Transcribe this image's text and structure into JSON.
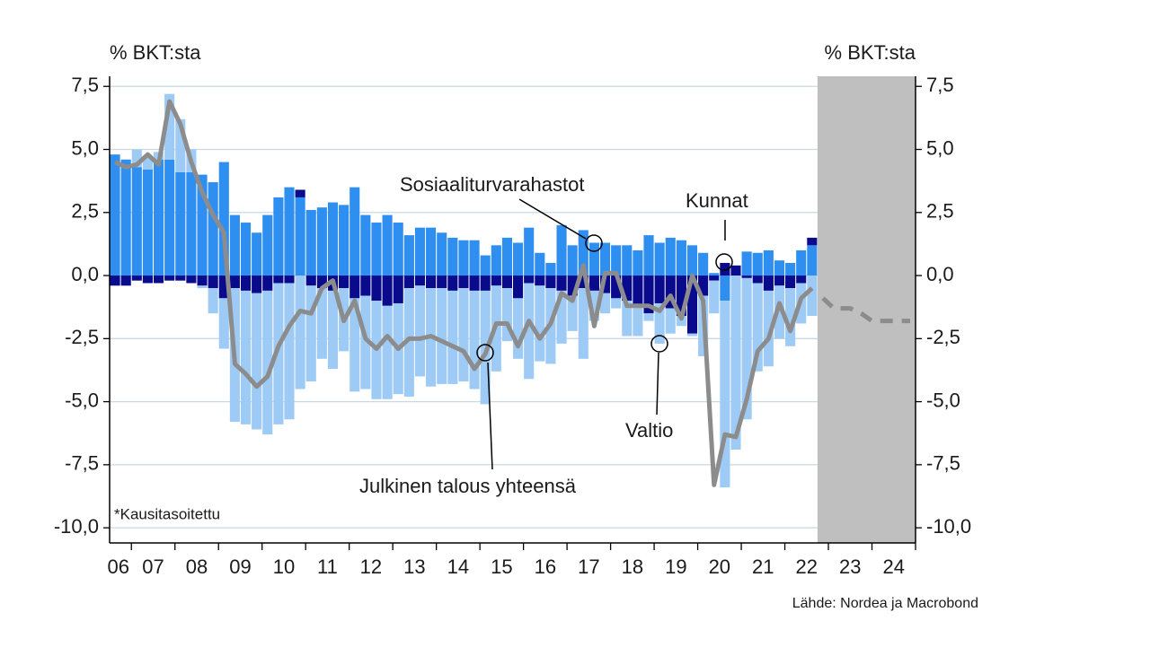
{
  "chart_data": {
    "type": "stacked-bar-line",
    "y_label": "% BKT:sta",
    "y2_label": "% BKT:sta",
    "annotations": {
      "social": "Sosiaaliturvarahastot",
      "municipal": "Kunnat",
      "state": "Valtio",
      "total": "Julkinen talous yhteensä"
    },
    "note": "*Kausitasoitettu",
    "source": "Lähde: Nordea ja Macrobond",
    "xlim": [
      2006.5,
      2025
    ],
    "ylim": [
      -10.6,
      7.9
    ],
    "yticks": [
      {
        "value": 7.5,
        "label": "7,5"
      },
      {
        "value": 5,
        "label": "5,0"
      },
      {
        "value": 2.5,
        "label": "2,5"
      },
      {
        "value": 0,
        "label": "0,0"
      },
      {
        "value": -2.5,
        "label": "-2,5"
      },
      {
        "value": -5,
        "label": "-5,0"
      },
      {
        "value": -7.5,
        "label": "-7,5"
      },
      {
        "value": -10,
        "label": "-10,0"
      }
    ],
    "xticks": [
      {
        "value": 2006.7,
        "label": "06"
      },
      {
        "value": 2007.5,
        "label": "07"
      },
      {
        "value": 2008.5,
        "label": "08"
      },
      {
        "value": 2009.5,
        "label": "09"
      },
      {
        "value": 2010.5,
        "label": "10"
      },
      {
        "value": 2011.5,
        "label": "11"
      },
      {
        "value": 2012.5,
        "label": "12"
      },
      {
        "value": 2013.5,
        "label": "13"
      },
      {
        "value": 2014.5,
        "label": "14"
      },
      {
        "value": 2015.5,
        "label": "15"
      },
      {
        "value": 2016.5,
        "label": "16"
      },
      {
        "value": 2017.5,
        "label": "17"
      },
      {
        "value": 2018.5,
        "label": "18"
      },
      {
        "value": 2019.5,
        "label": "19"
      },
      {
        "value": 2020.5,
        "label": "20"
      },
      {
        "value": 2021.5,
        "label": "21"
      },
      {
        "value": 2022.5,
        "label": "22"
      },
      {
        "value": 2023.5,
        "label": "23"
      },
      {
        "value": 2024.5,
        "label": "24"
      }
    ],
    "grid": true,
    "shaded_xlim": [
      2022.75,
      2025
    ],
    "shade_color": "#bfbfbf",
    "x": [
      2006.625,
      2006.875,
      2007.125,
      2007.375,
      2007.625,
      2007.875,
      2008.125,
      2008.375,
      2008.625,
      2008.875,
      2009.125,
      2009.375,
      2009.625,
      2009.875,
      2010.125,
      2010.375,
      2010.625,
      2010.875,
      2011.125,
      2011.375,
      2011.625,
      2011.875,
      2012.125,
      2012.375,
      2012.625,
      2012.875,
      2013.125,
      2013.375,
      2013.625,
      2013.875,
      2014.125,
      2014.375,
      2014.625,
      2014.875,
      2015.125,
      2015.375,
      2015.625,
      2015.875,
      2016.125,
      2016.375,
      2016.625,
      2016.875,
      2017.125,
      2017.375,
      2017.625,
      2017.875,
      2018.125,
      2018.375,
      2018.625,
      2018.875,
      2019.125,
      2019.375,
      2019.625,
      2019.875,
      2020.125,
      2020.375,
      2020.625,
      2020.875,
      2021.125,
      2021.375,
      2021.625,
      2021.875,
      2022.125,
      2022.375,
      2022.625
    ],
    "series": [
      {
        "name": "Sosiaaliturvarahastot",
        "color": "#2f8ff0",
        "values": [
          4.8,
          4.6,
          4.3,
          4.2,
          4.6,
          4.6,
          4.1,
          4.1,
          4.0,
          3.7,
          4.5,
          2.4,
          2.1,
          1.7,
          2.4,
          3.1,
          3.5,
          3.1,
          2.6,
          2.7,
          2.9,
          2.8,
          3.5,
          2.4,
          2.1,
          2.4,
          2.1,
          1.6,
          1.9,
          1.9,
          1.7,
          1.5,
          1.4,
          1.4,
          0.8,
          1.2,
          1.5,
          1.3,
          1.9,
          0.9,
          0.5,
          2.0,
          1.2,
          1.8,
          1.3,
          1.3,
          1.2,
          1.2,
          1.0,
          1.6,
          1.3,
          1.5,
          1.4,
          1.2,
          0.9,
          0.1,
          -1.0,
          0.0,
          0.95,
          0.9,
          1.0,
          0.6,
          0.5,
          1.0,
          1.2
        ]
      },
      {
        "name": "Kunnat",
        "color": "#0a0a8c",
        "values": [
          -0.4,
          -0.4,
          -0.2,
          -0.3,
          -0.3,
          -0.2,
          -0.2,
          -0.3,
          -0.4,
          -0.5,
          -0.9,
          -0.5,
          -0.6,
          -0.7,
          -0.6,
          -0.3,
          -0.3,
          0.3,
          -0.4,
          -0.5,
          -0.6,
          -0.5,
          -0.9,
          -0.8,
          -1.0,
          -1.2,
          -1.1,
          -0.5,
          -0.4,
          -0.5,
          -0.5,
          -0.6,
          -0.5,
          -0.6,
          -0.6,
          -0.4,
          -0.5,
          -0.9,
          -0.3,
          -0.4,
          -0.5,
          -0.6,
          -0.8,
          -0.5,
          -0.6,
          -0.7,
          -0.9,
          -1.0,
          -1.2,
          -1.5,
          -1.1,
          -1.3,
          -1.6,
          -2.3,
          -0.8,
          -0.2,
          0.5,
          0.4,
          -0.1,
          -0.3,
          -0.6,
          -0.4,
          -0.5,
          -0.3,
          0.3
        ]
      },
      {
        "name": "Valtio",
        "color": "#9ecbf5",
        "values": [
          0,
          0,
          0.7,
          0.5,
          0.3,
          2.6,
          2.1,
          0.9,
          -0.1,
          -1.0,
          -2.0,
          -5.3,
          -5.3,
          -5.4,
          -5.7,
          -5.6,
          -5.4,
          -4.5,
          -3.8,
          -2.8,
          -3.1,
          -2.5,
          -3.7,
          -3.7,
          -3.9,
          -3.7,
          -3.6,
          -4.3,
          -3.6,
          -3.9,
          -3.8,
          -3.7,
          -3.7,
          -3.9,
          -4.5,
          -3.4,
          -2.1,
          -2.4,
          -3.8,
          -3.0,
          -3.0,
          -2.1,
          -1.4,
          -2.8,
          -1.2,
          -0.8,
          -0.4,
          -1.4,
          -1.2,
          -0.3,
          -1.6,
          -1.0,
          -0.4,
          -0.1,
          -2.4,
          -1.3,
          -7.4,
          -6.9,
          -5.6,
          -3.5,
          -3.0,
          -2.1,
          -2.3,
          -1.6,
          -1.6
        ]
      }
    ],
    "line": {
      "name": "Julkinen talous yhteensä",
      "color": "#8c8c8c",
      "values": [
        4.5,
        4.3,
        4.4,
        4.8,
        4.4,
        6.9,
        6.0,
        4.5,
        3.3,
        2.4,
        1.7,
        -3.5,
        -3.9,
        -4.4,
        -4.0,
        -2.8,
        -2.0,
        -1.4,
        -1.5,
        -0.5,
        -0.2,
        -1.8,
        -1.0,
        -2.5,
        -2.9,
        -2.4,
        -2.9,
        -2.5,
        -2.5,
        -2.4,
        -2.6,
        -2.8,
        -3.0,
        -3.7,
        -3.1,
        -1.9,
        -1.9,
        -2.8,
        -1.8,
        -2.5,
        -1.9,
        -0.7,
        -1.0,
        0.4,
        -2.0,
        0.1,
        0.1,
        -1.2,
        -1.2,
        -1.2,
        -1.4,
        -0.8,
        -1.7,
        0.0,
        -1.0,
        -8.3,
        -6.3,
        -6.4,
        -4.9,
        -3.0,
        -2.5,
        -1.1,
        -2.2,
        -0.9,
        -0.5
      ]
    },
    "forecast": {
      "color": "#8c8c8c",
      "x": [
        2022.875,
        2023.125,
        2023.5,
        2023.75,
        2024.0,
        2024.875
      ],
      "values": [
        -0.9,
        -1.3,
        -1.3,
        -1.5,
        -1.8,
        -1.8
      ]
    }
  }
}
